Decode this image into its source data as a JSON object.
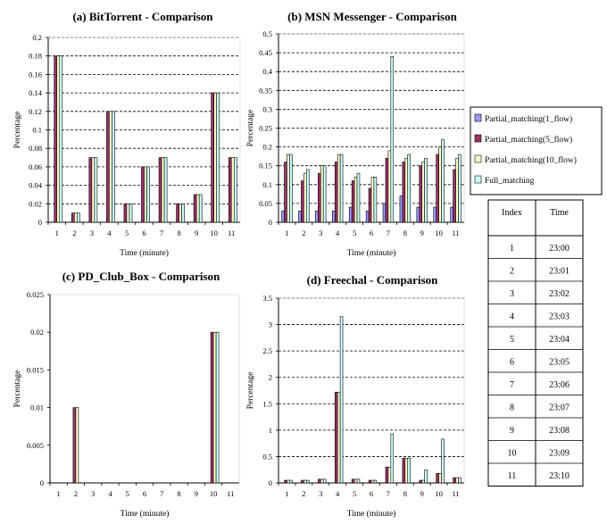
{
  "colors": {
    "series": [
      "#9999ff",
      "#993366",
      "#ffffcc",
      "#ccffff"
    ],
    "outline": "#000000",
    "grid": "#000000"
  },
  "legend": {
    "items": [
      "Partial_matching(1_flow)",
      "Partial_matching(5_flow)",
      "Partial_matching(10_flow)",
      "Full_matching"
    ]
  },
  "time_table": {
    "headers": [
      "Index",
      "Time"
    ],
    "rows": [
      [
        "1",
        "23:00"
      ],
      [
        "2",
        "23:01"
      ],
      [
        "3",
        "23:02"
      ],
      [
        "4",
        "23:03"
      ],
      [
        "5",
        "23:04"
      ],
      [
        "6",
        "23:05"
      ],
      [
        "7",
        "23:06"
      ],
      [
        "8",
        "23:07"
      ],
      [
        "9",
        "23:08"
      ],
      [
        "10",
        "23:09"
      ],
      [
        "11",
        "23:10"
      ]
    ]
  },
  "chart_data": [
    {
      "type": "bar",
      "title": "(a) BitTorrent - Comparison",
      "xlabel": "Time (minute)",
      "ylabel": "Percentage",
      "categories": [
        "1",
        "2",
        "3",
        "4",
        "5",
        "6",
        "7",
        "8",
        "9",
        "10",
        "11"
      ],
      "ylim": [
        0,
        0.2
      ],
      "yticks": [
        "0",
        "0.02",
        "0.04",
        "0.06",
        "0.08",
        "0.1",
        "0.12",
        "0.14",
        "0.16",
        "0.18",
        "0.2"
      ],
      "grid": true,
      "series": [
        {
          "name": "Partial_matching(1_flow)",
          "values": [
            0,
            0,
            0,
            0,
            0,
            0,
            0,
            0,
            0,
            0,
            0
          ]
        },
        {
          "name": "Partial_matching(5_flow)",
          "values": [
            0.18,
            0.01,
            0.07,
            0.12,
            0.02,
            0.06,
            0.07,
            0.02,
            0.03,
            0.14,
            0.07
          ]
        },
        {
          "name": "Partial_matching(10_flow)",
          "values": [
            0.18,
            0.01,
            0.07,
            0.12,
            0.02,
            0.06,
            0.07,
            0.02,
            0.03,
            0.14,
            0.07
          ]
        },
        {
          "name": "Full_matching",
          "values": [
            0.18,
            0.01,
            0.07,
            0.12,
            0.02,
            0.06,
            0.07,
            0.02,
            0.03,
            0.14,
            0.07
          ]
        }
      ]
    },
    {
      "type": "bar",
      "title": "(b) MSN Messenger - Comparison",
      "xlabel": "Time (minute)",
      "ylabel": "Percentage",
      "categories": [
        "1",
        "2",
        "3",
        "4",
        "5",
        "6",
        "7",
        "8",
        "9",
        "10",
        "11"
      ],
      "ylim": [
        0,
        0.5
      ],
      "yticks": [
        "0",
        "0.05",
        "0.1",
        "0.15",
        "0.2",
        "0.25",
        "0.3",
        "0.35",
        "0.4",
        "0.45",
        "0.5"
      ],
      "grid": true,
      "series": [
        {
          "name": "Partial_matching(1_flow)",
          "values": [
            0.03,
            0.03,
            0.03,
            0.03,
            0.04,
            0.03,
            0.05,
            0.07,
            0.04,
            0.04,
            0.04
          ]
        },
        {
          "name": "Partial_matching(5_flow)",
          "values": [
            0.16,
            0.11,
            0.13,
            0.16,
            0.11,
            0.09,
            0.17,
            0.16,
            0.15,
            0.18,
            0.14
          ]
        },
        {
          "name": "Partial_matching(10_flow)",
          "values": [
            0.18,
            0.13,
            0.15,
            0.18,
            0.12,
            0.12,
            0.19,
            0.17,
            0.16,
            0.2,
            0.17
          ]
        },
        {
          "name": "Full_matching",
          "values": [
            0.18,
            0.14,
            0.15,
            0.18,
            0.13,
            0.12,
            0.44,
            0.18,
            0.17,
            0.22,
            0.18
          ]
        }
      ]
    },
    {
      "type": "bar",
      "title": "(c) PD_Club_Box - Comparison",
      "xlabel": "Time (minute)",
      "ylabel": "Percentage",
      "categories": [
        "1",
        "2",
        "3",
        "4",
        "5",
        "6",
        "7",
        "8",
        "9",
        "10",
        "11"
      ],
      "ylim": [
        0,
        0.025
      ],
      "yticks": [
        "0",
        "0.005",
        "0.01",
        "0.015",
        "0.02",
        "0.025"
      ],
      "grid": false,
      "series": [
        {
          "name": "Partial_matching(1_flow)",
          "values": [
            0,
            0,
            0,
            0,
            0,
            0,
            0,
            0,
            0,
            0,
            0
          ]
        },
        {
          "name": "Partial_matching(5_flow)",
          "values": [
            0,
            0.01,
            0,
            0,
            0,
            0,
            0,
            0,
            0,
            0.02,
            0
          ]
        },
        {
          "name": "Partial_matching(10_flow)",
          "values": [
            0,
            0.01,
            0,
            0,
            0,
            0,
            0,
            0,
            0,
            0.02,
            0
          ]
        },
        {
          "name": "Full_matching",
          "values": [
            0,
            0,
            0,
            0,
            0,
            0,
            0,
            0,
            0,
            0.02,
            0
          ]
        }
      ]
    },
    {
      "type": "bar",
      "title": "(d) Freechal - Comparison",
      "xlabel": "Time (minute)",
      "ylabel": "Percentage",
      "categories": [
        "1",
        "2",
        "3",
        "4",
        "5",
        "6",
        "7",
        "8",
        "9",
        "10",
        "11"
      ],
      "ylim": [
        0,
        3.5
      ],
      "yticks": [
        "0",
        "0.5",
        "1",
        "1.5",
        "2",
        "2.5",
        "3",
        "3.5"
      ],
      "grid": true,
      "series": [
        {
          "name": "Partial_matching(1_flow)",
          "values": [
            0,
            0,
            0,
            0,
            0,
            0,
            0,
            0,
            0,
            0,
            0
          ]
        },
        {
          "name": "Partial_matching(5_flow)",
          "values": [
            0.05,
            0.05,
            0.07,
            1.72,
            0.07,
            0.05,
            0.3,
            0.47,
            0.05,
            0.18,
            0.1
          ]
        },
        {
          "name": "Partial_matching(10_flow)",
          "values": [
            0.05,
            0.05,
            0.07,
            1.72,
            0.07,
            0.05,
            0.3,
            0.47,
            0.05,
            0.18,
            0.1
          ]
        },
        {
          "name": "Full_matching",
          "values": [
            0.05,
            0.05,
            0.07,
            3.15,
            0.07,
            0.05,
            0.93,
            0.47,
            0.25,
            0.83,
            0.1
          ]
        }
      ]
    }
  ]
}
